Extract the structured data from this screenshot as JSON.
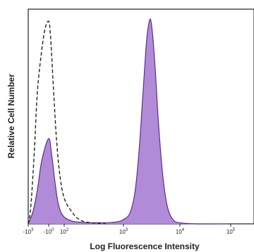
{
  "chart_data": {
    "type": "area",
    "title": "",
    "xlabel": "Log Fluorescence Intensity",
    "ylabel": "Relative Cell Number",
    "x_scale": "biexponential",
    "grid": false,
    "legend": "none",
    "xlim": [
      -200,
      200000
    ],
    "ylim": [
      0,
      100
    ],
    "x_ticks": [
      {
        "value": -1000,
        "label": "-10",
        "exp": "3"
      },
      {
        "value": 0,
        "label": "-10",
        "exp": "0"
      },
      {
        "value": 100,
        "label": "10",
        "exp": "2"
      },
      {
        "value": 1000,
        "label": "10",
        "exp": "3"
      },
      {
        "value": 10000,
        "label": "10",
        "exp": "4"
      },
      {
        "value": 100000,
        "label": "10",
        "exp": "5"
      }
    ],
    "series": [
      {
        "style": "filled",
        "color": "#b18bd8",
        "outline": "#5a2d91",
        "x": [
          -200,
          -120,
          -80,
          -50,
          -30,
          0,
          20,
          40,
          60,
          90,
          130,
          180,
          250,
          400,
          600,
          800,
          1000,
          1300,
          1600,
          1900,
          2200,
          2500,
          2700,
          3000,
          3300,
          3700,
          4200,
          5000,
          6000,
          7500,
          10000,
          20000,
          100000
        ],
        "values": [
          0,
          2,
          6,
          16,
          30,
          40,
          32,
          20,
          10,
          4,
          1.5,
          0.8,
          0.5,
          0.5,
          0.6,
          1,
          2,
          5,
          15,
          35,
          60,
          82,
          91,
          96,
          88,
          70,
          46,
          22,
          8,
          2,
          0.5,
          0,
          0
        ]
      },
      {
        "style": "dashed",
        "color": "#222222",
        "x": [
          -200,
          -120,
          -90,
          -70,
          -50,
          -30,
          -15,
          0,
          10,
          20,
          35,
          50,
          70,
          100,
          140,
          180,
          240,
          350,
          500
        ],
        "values": [
          0,
          4,
          14,
          36,
          62,
          82,
          92,
          95,
          90,
          78,
          58,
          40,
          24,
          12,
          5,
          2,
          0.8,
          0.3,
          0
        ]
      }
    ]
  }
}
